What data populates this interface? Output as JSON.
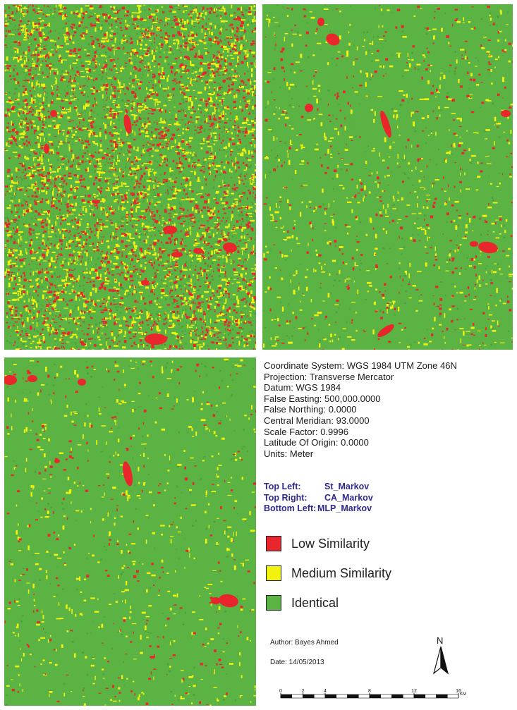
{
  "map": {
    "colors": {
      "low_similarity": "#e8262b",
      "medium_similarity": "#f2f20f",
      "identical": "#5bb343"
    },
    "panels": [
      {
        "id": "top-left",
        "model": "St_Markov",
        "pattern": "heavy fragmented mix of identical, medium and low similarity"
      },
      {
        "id": "top-right",
        "model": "CA_Markov",
        "pattern": "mostly identical with scattered low/medium patches"
      },
      {
        "id": "bottom-left",
        "model": "MLP_Markov",
        "pattern": "mostly identical with scattered low/medium patches"
      }
    ]
  },
  "info": {
    "lines": [
      "Coordinate System: WGS 1984 UTM Zone 46N",
      "Projection: Transverse Mercator",
      "Datum: WGS 1984",
      "False Easting: 500,000.0000",
      "False Northing: 0.0000",
      "Central Meridian: 93.0000",
      "Scale Factor: 0.9996",
      "Latitude Of Origin: 0.0000",
      "Units: Meter"
    ]
  },
  "panel_key": [
    {
      "label": "Top Left:",
      "value": "St_Markov"
    },
    {
      "label": "Top Right:",
      "value": "CA_Markov"
    },
    {
      "label": "Bottom Left:",
      "value": "MLP_Markov"
    }
  ],
  "legend": [
    {
      "label": "Low Similarity",
      "color": "#e8262b"
    },
    {
      "label": "Medium Similarity",
      "color": "#f2f20f"
    },
    {
      "label": "Identical",
      "color": "#5bb343"
    }
  ],
  "author": "Author: Bayes Ahmed",
  "date": "Date: 14/05/2013",
  "north_label": "N",
  "scale_bar": {
    "ticks": [
      "0",
      "2",
      "4",
      "8",
      "12",
      "16"
    ],
    "tick_values": [
      0,
      2,
      4,
      8,
      12,
      16
    ],
    "unit": "KM"
  }
}
